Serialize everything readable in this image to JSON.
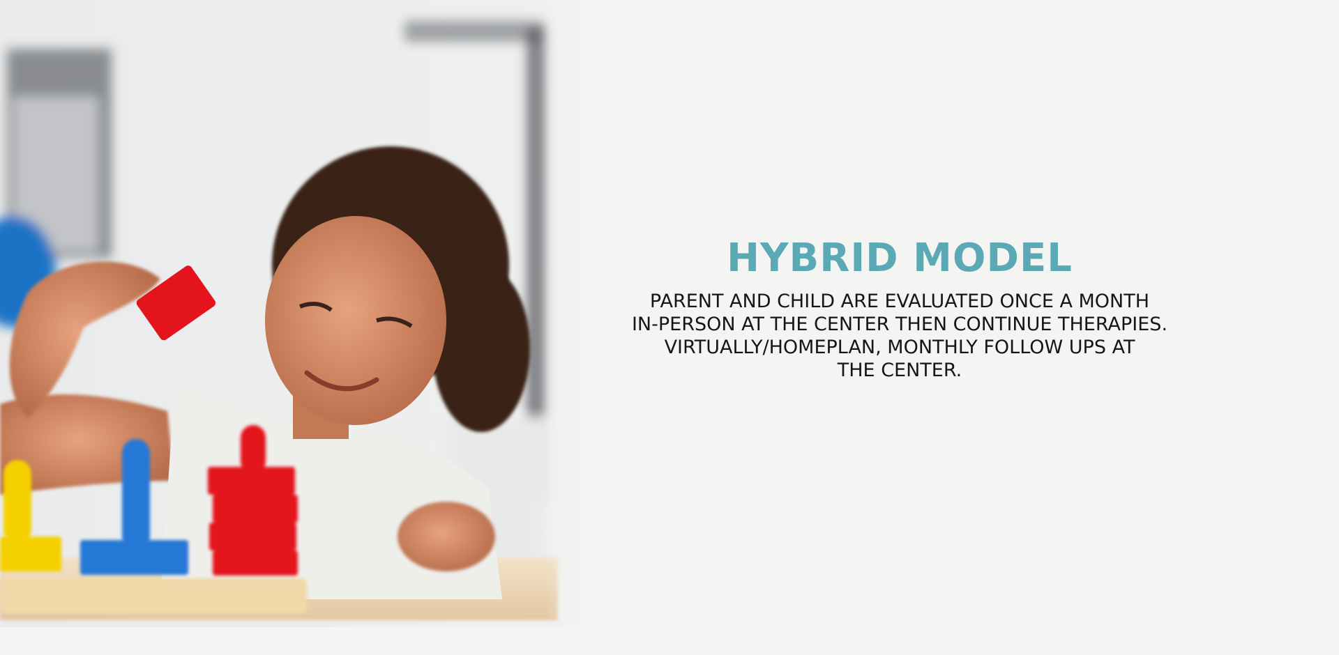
{
  "section": {
    "heading": "HYBRID MODEL",
    "body_lines": [
      "PARENT AND CHILD ARE EVALUATED ONCE A MONTH",
      "IN-PERSON AT THE CENTER THEN CONTINUE THERAPIES.",
      "VIRTUALLY/HOMEPLAN, MONTHLY FOLLOW UPS AT",
      "THE CENTER."
    ]
  },
  "colors": {
    "background": "#f4f4f2",
    "heading": "#5aa9b4",
    "body_text": "#151515"
  },
  "image": {
    "subject": "child-playing-with-stacking-peg-toys-photo"
  }
}
